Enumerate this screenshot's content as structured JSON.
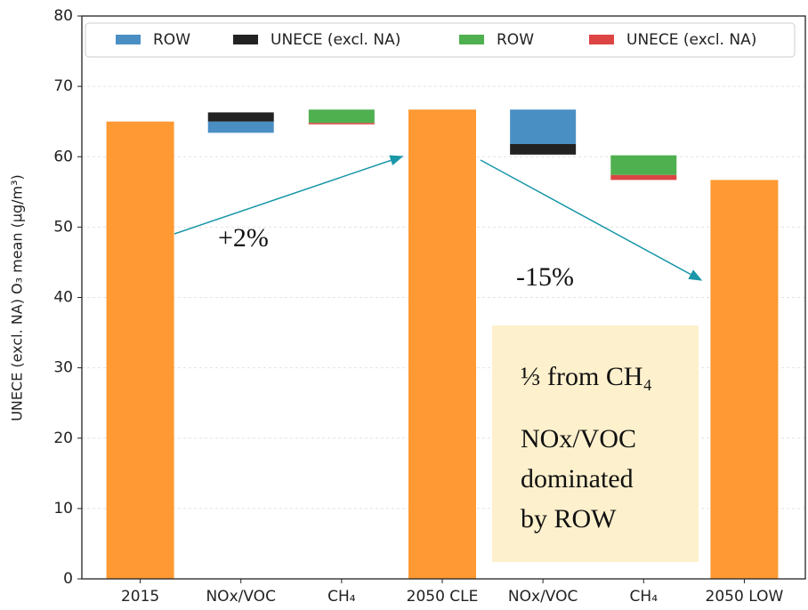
{
  "chart_data": {
    "type": "waterfall",
    "ylabel": "UNECE (excl. NA) O₃ mean (μg/m³)",
    "categories": [
      "2015",
      "NOx/VOC",
      "CH₄",
      "2050 CLE",
      "NOx/VOC",
      "CH₄",
      "2050 LOW"
    ],
    "totals": {
      "color": "#ff9933",
      "values": [
        65,
        null,
        null,
        66.7,
        null,
        null,
        56.7
      ]
    },
    "series": [
      {
        "name": "ROW",
        "color": "#4a8fc4",
        "values": [
          null,
          [
            63.4,
            65
          ],
          null,
          null,
          [
            61.8,
            66.7
          ],
          null,
          null
        ]
      },
      {
        "name": "UNECE (excl. NA)",
        "color": "#222222",
        "values": [
          null,
          [
            65,
            66.3
          ],
          null,
          null,
          [
            60.3,
            61.8
          ],
          null,
          null
        ]
      },
      {
        "name": "ROW",
        "color": "#4fb04f",
        "values": [
          null,
          null,
          [
            64.8,
            66.7
          ],
          null,
          null,
          [
            57.4,
            60.2
          ],
          null
        ]
      },
      {
        "name": "UNECE (excl. NA)",
        "color": "#dd4444",
        "values": [
          null,
          null,
          [
            64.6,
            64.8
          ],
          null,
          null,
          [
            56.7,
            57.4
          ],
          null
        ]
      }
    ],
    "ylim": [
      0,
      80
    ],
    "yticks": [
      0,
      10,
      20,
      30,
      40,
      50,
      60,
      70,
      80
    ],
    "grid": true,
    "legend": "upper center",
    "annotations": [
      "+2%",
      "-15%"
    ],
    "note": [
      "⅓ from CH₄",
      "NOx/VOC",
      "dominated",
      "by ROW"
    ]
  }
}
